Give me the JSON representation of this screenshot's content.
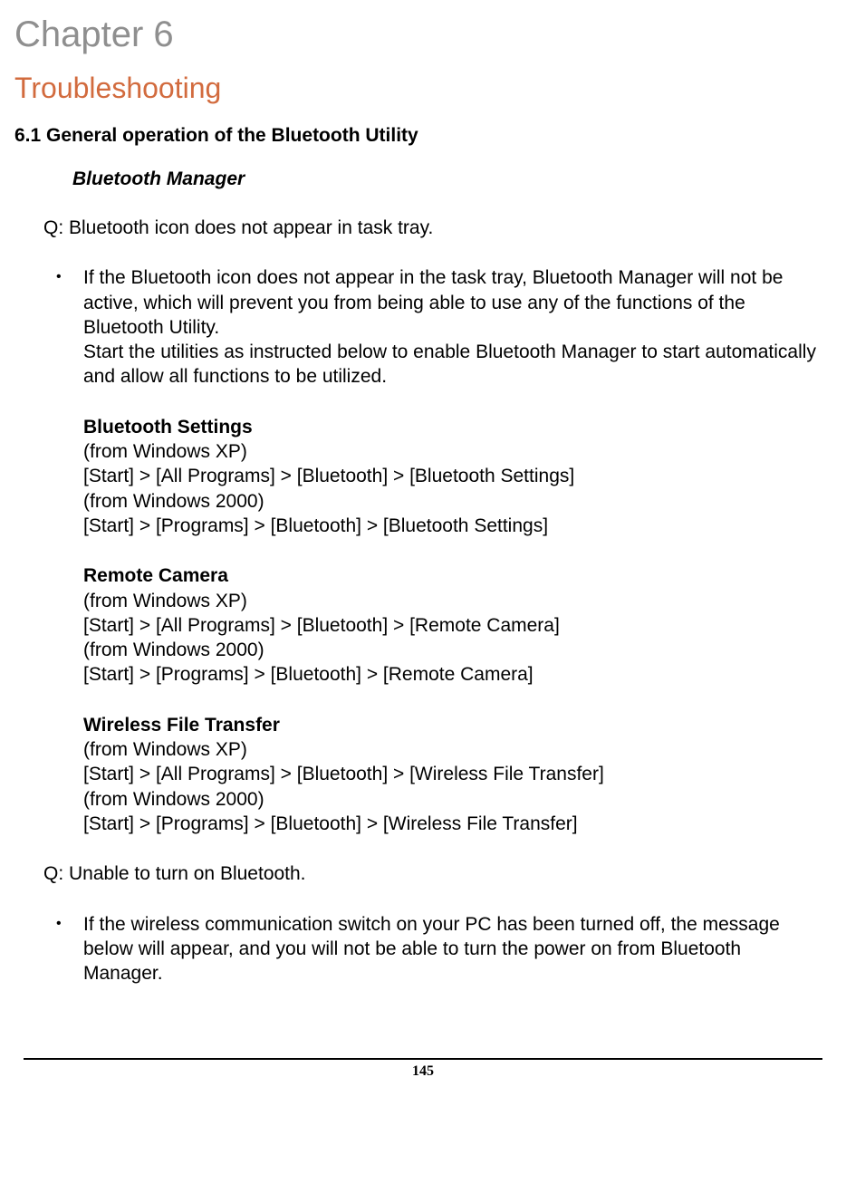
{
  "chapter": {
    "num": "Chapter 6",
    "title": "Troubleshooting"
  },
  "section": {
    "heading": "6.1  General operation of the Bluetooth Utility",
    "subsection": "Bluetooth Manager"
  },
  "faq": [
    {
      "q": "Q: Bluetooth icon does not appear in task tray.",
      "ans": {
        "intro": "If the Bluetooth icon does not appear in the task tray, Bluetooth Manager will not be active, which will prevent you from being able to use any of the functions of the Bluetooth Utility.",
        "intro2": "Start the utilities as instructed below to enable Bluetooth Manager to start automatically and allow all functions to be utilized.",
        "blocks": [
          {
            "title": "Bluetooth Settings",
            "l1": "(from Windows XP)",
            "l2": "[Start] > [All Programs] > [Bluetooth] > [Bluetooth Settings]",
            "l3": "(from Windows 2000)",
            "l4": "[Start] > [Programs] > [Bluetooth] > [Bluetooth Settings]"
          },
          {
            "title": "Remote Camera",
            "l1": "(from Windows XP)",
            "l2": "[Start] > [All Programs] > [Bluetooth] > [Remote Camera]",
            "l3": "(from Windows 2000)",
            "l4": "[Start] > [Programs] > [Bluetooth] > [Remote Camera]"
          },
          {
            "title": "Wireless File Transfer",
            "l1": "(from Windows XP)",
            "l2": "[Start] > [All Programs] > [Bluetooth] > [Wireless File Transfer]",
            "l3": "(from Windows 2000)",
            "l4": "[Start] > [Programs] > [Bluetooth] > [Wireless File Transfer]"
          }
        ]
      }
    },
    {
      "q": "Q: Unable to turn on Bluetooth.",
      "ans": {
        "intro": "If the wireless communication switch on your PC has been turned off, the message below will appear, and you will not be able to turn the power on from Bluetooth Manager."
      }
    }
  ],
  "pageNumber": "145",
  "colors": {
    "chapter_num_color": "#8f8f8f",
    "chapter_title_color": "#d26b3e",
    "text_color": "#000000",
    "background_color": "#ffffff"
  },
  "typography": {
    "chapter_num_fontsize": 40,
    "chapter_title_fontsize": 32,
    "body_fontsize": 21,
    "pagenum_fontsize": 16
  }
}
